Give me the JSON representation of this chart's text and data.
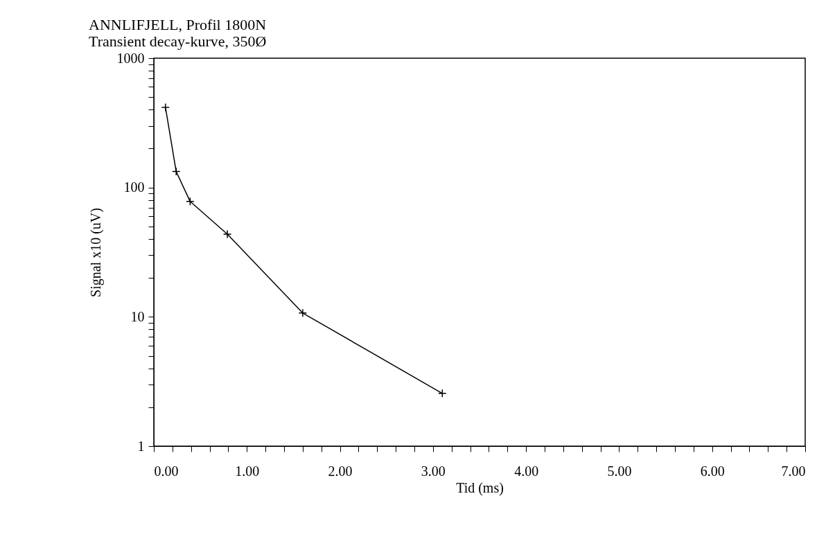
{
  "chart_data": {
    "type": "line",
    "title": [
      "ANNLIFJELL,  Profil 1800N",
      "Transient decay-kurve, 350Ø"
    ],
    "xlabel": "Tid (ms)",
    "ylabel": "Signal x10 (uV)",
    "x": [
      0.125,
      0.24,
      0.39,
      0.79,
      1.6,
      3.1
    ],
    "series": [
      {
        "color": "#000000",
        "values": [
          417,
          133,
          78,
          43.6,
          10.7,
          2.56
        ]
      }
    ],
    "log": "y",
    "marker": "cross",
    "line_style": "solid",
    "xlim": [
      0,
      7
    ],
    "xticks": [
      {
        "value": 0,
        "label": "0.00"
      },
      {
        "value": 0.2,
        "label": null
      },
      {
        "value": 0.4,
        "label": null
      },
      {
        "value": 0.6,
        "label": null
      },
      {
        "value": 0.8,
        "label": null
      },
      {
        "value": 1,
        "label": "1.00"
      },
      {
        "value": 1.2,
        "label": null
      },
      {
        "value": 1.4,
        "label": null
      },
      {
        "value": 1.6,
        "label": null
      },
      {
        "value": 1.8,
        "label": null
      },
      {
        "value": 2,
        "label": "2.00"
      },
      {
        "value": 2.2,
        "label": null
      },
      {
        "value": 2.4,
        "label": null
      },
      {
        "value": 2.6,
        "label": null
      },
      {
        "value": 2.8,
        "label": null
      },
      {
        "value": 3,
        "label": "3.00"
      },
      {
        "value": 3.2,
        "label": null
      },
      {
        "value": 3.4,
        "label": null
      },
      {
        "value": 3.6,
        "label": null
      },
      {
        "value": 3.8,
        "label": null
      },
      {
        "value": 4,
        "label": "4.00"
      },
      {
        "value": 4.2,
        "label": null
      },
      {
        "value": 4.4,
        "label": null
      },
      {
        "value": 4.6,
        "label": null
      },
      {
        "value": 4.8,
        "label": null
      },
      {
        "value": 5,
        "label": "5.00"
      },
      {
        "value": 5.2,
        "label": null
      },
      {
        "value": 5.4,
        "label": null
      },
      {
        "value": 5.6,
        "label": null
      },
      {
        "value": 5.8,
        "label": null
      },
      {
        "value": 6,
        "label": "6.00"
      },
      {
        "value": 6.2,
        "label": null
      },
      {
        "value": 6.4,
        "label": null
      },
      {
        "value": 6.6,
        "label": null
      },
      {
        "value": 6.8,
        "label": null
      },
      {
        "value": 7,
        "label": "7.00"
      }
    ],
    "ylim": [
      1,
      1000
    ],
    "yticks": [
      1,
      {
        "value": 2,
        "label": null
      },
      {
        "value": 3,
        "label": null
      },
      {
        "value": 4,
        "label": null
      },
      {
        "value": 5,
        "label": null
      },
      {
        "value": 6,
        "label": null
      },
      {
        "value": 7,
        "label": null
      },
      {
        "value": 8,
        "label": null
      },
      {
        "value": 9,
        "label": null
      },
      10,
      {
        "value": 20,
        "label": null
      },
      {
        "value": 30,
        "label": null
      },
      {
        "value": 40,
        "label": null
      },
      {
        "value": 50,
        "label": null
      },
      {
        "value": 60,
        "label": null
      },
      {
        "value": 70,
        "label": null
      },
      {
        "value": 80,
        "label": null
      },
      {
        "value": 90,
        "label": null
      },
      100,
      {
        "value": 200,
        "label": null
      },
      {
        "value": 300,
        "label": null
      },
      {
        "value": 400,
        "label": null
      },
      {
        "value": 500,
        "label": null
      },
      {
        "value": 600,
        "label": null
      },
      {
        "value": 700,
        "label": null
      },
      {
        "value": 800,
        "label": null
      },
      {
        "value": 900,
        "label": null
      },
      1000
    ]
  }
}
